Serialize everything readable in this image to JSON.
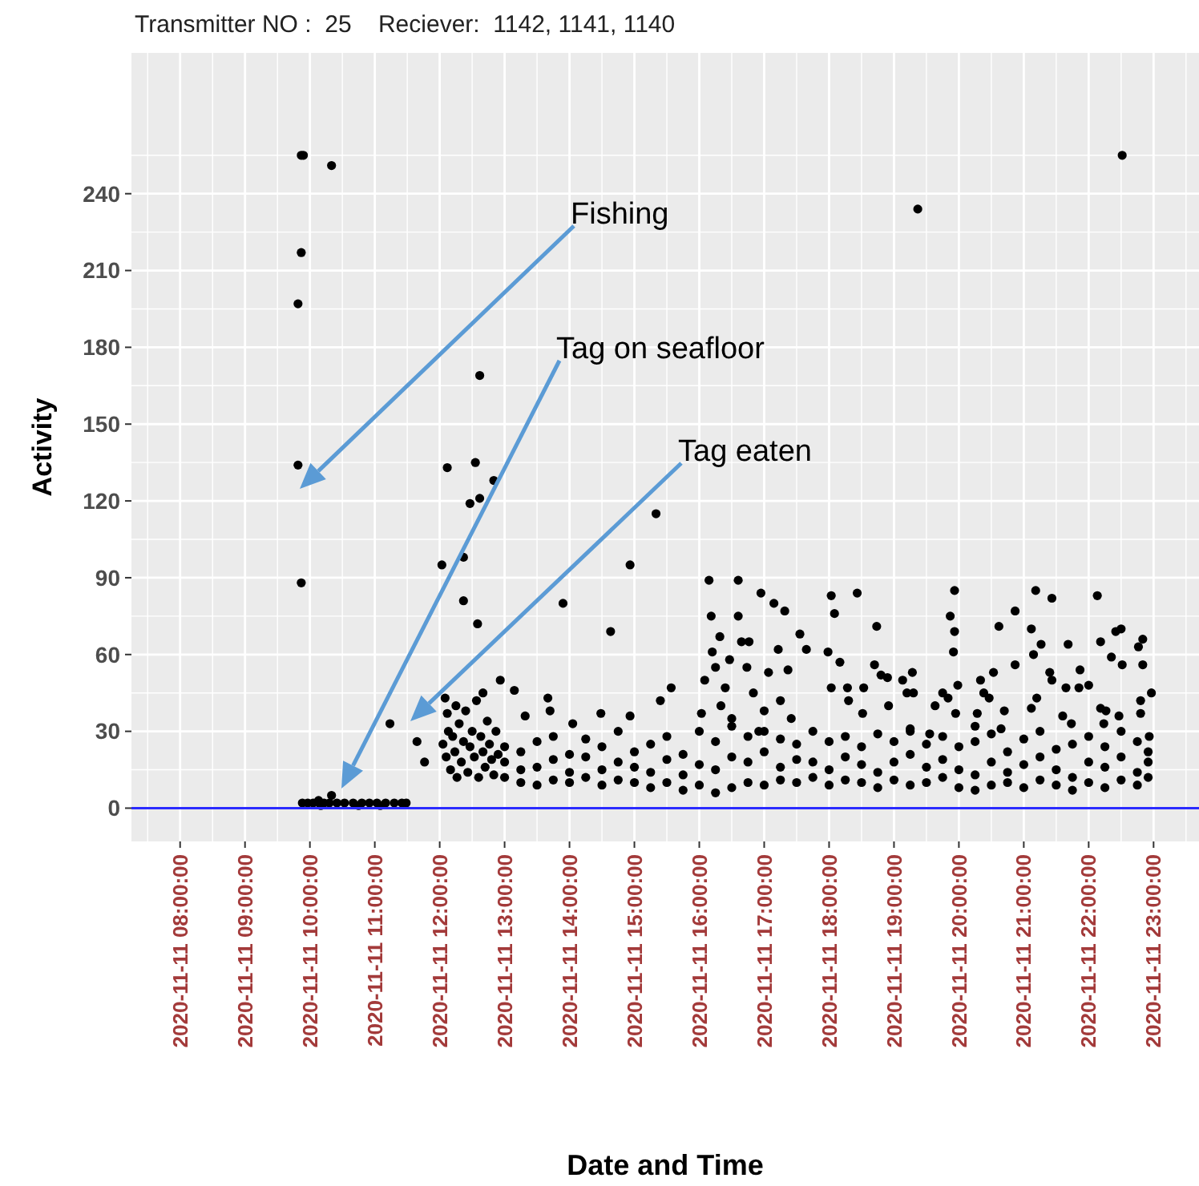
{
  "chart_data": {
    "type": "scatter",
    "title": "Transmitter NO :  25    Reciever:  1142, 1141, 1140",
    "xlabel": "Date and Time",
    "ylabel": "Activity",
    "xlim": [
      "2020-11-11T07:15",
      "2020-11-11T23:42"
    ],
    "ylim": [
      -13,
      295
    ],
    "xticks": [
      {
        "value": "2020-11-11T08:00",
        "label": "2020-11-11 08:00:00"
      },
      {
        "value": "2020-11-11T09:00",
        "label": "2020-11-11 09:00:00"
      },
      {
        "value": "2020-11-11T10:00",
        "label": "2020-11-11 10:00:00"
      },
      {
        "value": "2020-11-11T11:00",
        "label": "2020-11-11 11:00:00"
      },
      {
        "value": "2020-11-11T12:00",
        "label": "2020-11-11 12:00:00"
      },
      {
        "value": "2020-11-11T13:00",
        "label": "2020-11-11 13:00:00"
      },
      {
        "value": "2020-11-11T14:00",
        "label": "2020-11-11 14:00:00"
      },
      {
        "value": "2020-11-11T15:00",
        "label": "2020-11-11 15:00:00"
      },
      {
        "value": "2020-11-11T16:00",
        "label": "2020-11-11 16:00:00"
      },
      {
        "value": "2020-11-11T17:00",
        "label": "2020-11-11 17:00:00"
      },
      {
        "value": "2020-11-11T18:00",
        "label": "2020-11-11 18:00:00"
      },
      {
        "value": "2020-11-11T19:00",
        "label": "2020-11-11 19:00:00"
      },
      {
        "value": "2020-11-11T20:00",
        "label": "2020-11-11 20:00:00"
      },
      {
        "value": "2020-11-11T21:00",
        "label": "2020-11-11 21:00:00"
      },
      {
        "value": "2020-11-11T22:00",
        "label": "2020-11-11 22:00:00"
      },
      {
        "value": "2020-11-11T23:00",
        "label": "2020-11-11 23:00:00"
      }
    ],
    "yticks": [
      0,
      30,
      60,
      90,
      120,
      150,
      180,
      210,
      240
    ],
    "grid": true,
    "marker": "circle",
    "ref_lines": [
      {
        "axis": "y",
        "value": 0,
        "color": "#2b2bff"
      }
    ],
    "annotations": [
      "Fishing",
      "Tag on seafloor",
      "Tag eaten"
    ],
    "series": [
      {
        "color": "#000000",
        "x": [
          "2020-11-11T09:52",
          "2020-11-11T09:54",
          "2020-11-11T10:20",
          "2020-11-11T09:52",
          "2020-11-11T09:49",
          "2020-11-11T09:49",
          "2020-11-11T09:52",
          "2020-11-11T09:53",
          "2020-11-11T09:58",
          "2020-11-11T10:03",
          "2020-11-11T10:08",
          "2020-11-11T10:10",
          "2020-11-11T10:13",
          "2020-11-11T10:18",
          "2020-11-11T10:20",
          "2020-11-11T10:25",
          "2020-11-11T10:32",
          "2020-11-11T10:40",
          "2020-11-11T10:45",
          "2020-11-11T10:48",
          "2020-11-11T10:55",
          "2020-11-11T11:02",
          "2020-11-11T11:05",
          "2020-11-11T11:10",
          "2020-11-11T11:18",
          "2020-11-11T11:25",
          "2020-11-11T11:29",
          "2020-11-11T11:14",
          "2020-11-11T11:39",
          "2020-11-11T11:46",
          "2020-11-11T12:37",
          "2020-11-11T12:07",
          "2020-11-11T12:33",
          "2020-11-11T12:50",
          "2020-11-11T12:28",
          "2020-11-11T12:37",
          "2020-11-11T12:02",
          "2020-11-11T12:22",
          "2020-11-11T12:22",
          "2020-11-11T12:35",
          "2020-11-11T12:05",
          "2020-11-11T12:07",
          "2020-11-11T12:56",
          "2020-11-11T12:03",
          "2020-11-11T12:06",
          "2020-11-11T12:08",
          "2020-11-11T12:10",
          "2020-11-11T12:12",
          "2020-11-11T12:14",
          "2020-11-11T12:15",
          "2020-11-11T12:16",
          "2020-11-11T12:18",
          "2020-11-11T12:20",
          "2020-11-11T12:22",
          "2020-11-11T12:24",
          "2020-11-11T12:26",
          "2020-11-11T12:28",
          "2020-11-11T12:30",
          "2020-11-11T12:32",
          "2020-11-11T12:34",
          "2020-11-11T12:36",
          "2020-11-11T12:38",
          "2020-11-11T12:40",
          "2020-11-11T12:40",
          "2020-11-11T12:42",
          "2020-11-11T12:44",
          "2020-11-11T12:46",
          "2020-11-11T12:48",
          "2020-11-11T12:50",
          "2020-11-11T12:52",
          "2020-11-11T12:54",
          "2020-11-11T14:56",
          "2020-11-11T13:54",
          "2020-11-11T14:38",
          "2020-11-11T16:09",
          "2020-11-11T16:36",
          "2020-11-11T16:57",
          "2020-11-11T17:09",
          "2020-11-11T17:19",
          "2020-11-11T16:11",
          "2020-11-11T16:36",
          "2020-11-11T18:02",
          "2020-11-11T18:26",
          "2020-11-11T18:05",
          "2020-11-11T17:33",
          "2020-11-11T17:39",
          "2020-11-11T17:13",
          "2020-11-11T16:19",
          "2020-11-11T16:12",
          "2020-11-11T16:15",
          "2020-11-11T16:39",
          "2020-11-11T16:46",
          "2020-11-11T16:44",
          "2020-11-11T16:24",
          "2020-11-11T17:04",
          "2020-11-11T17:22",
          "2020-11-11T17:59",
          "2020-11-11T18:10",
          "2020-11-11T18:02",
          "2020-11-11T18:17",
          "2020-11-11T18:18",
          "2020-11-11T13:09",
          "2020-11-11T13:19",
          "2020-11-11T13:40",
          "2020-11-11T13:42",
          "2020-11-11T14:03",
          "2020-11-11T14:29",
          "2020-11-11T14:56",
          "2020-11-11T15:24",
          "2020-11-11T15:34",
          "2020-11-11T16:02",
          "2020-11-11T15:20",
          "2020-11-11T16:20",
          "2020-11-11T16:28",
          "2020-11-11T16:50",
          "2020-11-11T17:00",
          "2020-11-11T16:05",
          "2020-11-11T16:30",
          "2020-11-11T17:15",
          "2020-11-11T17:25",
          "2020-11-11T16:55",
          "2020-11-11T18:44",
          "2020-11-11T19:56",
          "2020-11-11T19:52",
          "2020-11-11T19:56",
          "2020-11-11T19:55",
          "2020-11-11T21:11",
          "2020-11-11T21:26",
          "2020-11-11T22:08",
          "2020-11-11T20:52",
          "2020-11-11T20:37",
          "2020-11-11T21:07",
          "2020-11-11T21:16",
          "2020-11-11T21:41",
          "2020-11-11T22:25",
          "2020-11-11T22:30",
          "2020-11-11T22:11",
          "2020-11-11T22:50",
          "2020-11-11T22:46",
          "2020-11-11T22:21",
          "2020-11-11T22:31",
          "2020-11-11T22:50",
          "2020-11-11T22:58",
          "2020-11-11T22:48",
          "2020-11-11T22:48",
          "2020-11-11T22:56",
          "2020-11-11T21:09",
          "2020-11-11T21:24",
          "2020-11-11T21:26",
          "2020-11-11T21:52",
          "2020-11-11T21:39",
          "2020-11-11T21:51",
          "2020-11-11T22:00",
          "2020-11-11T20:52",
          "2020-11-11T20:20",
          "2020-11-11T20:32",
          "2020-11-11T21:07",
          "2020-11-11T21:12",
          "2020-11-11T20:23",
          "2020-11-11T20:28",
          "2020-11-11T19:17",
          "2020-11-11T19:08",
          "2020-11-11T19:12",
          "2020-11-11T19:18",
          "2020-11-11T18:42",
          "2020-11-11T18:48",
          "2020-11-11T18:54",
          "2020-11-11T18:32",
          "2020-11-11T18:55",
          "2020-11-11T18:31",
          "2020-11-11T19:45",
          "2020-11-11T19:50",
          "2020-11-11T19:38",
          "2020-11-11T19:57",
          "2020-11-11T19:59",
          "2020-11-11T20:17",
          "2020-11-11T20:15",
          "2020-11-11T20:42",
          "2020-11-11T20:39",
          "2020-11-11T21:36",
          "2020-11-11T21:44",
          "2020-11-11T22:11",
          "2020-11-11T22:16",
          "2020-11-11T22:14",
          "2020-11-11T22:28",
          "2020-11-11T19:33",
          "2020-11-11T19:15",
          "2020-11-11T19:22",
          "2020-11-11T22:31",
          "2020-11-11T13:00",
          "2020-11-11T13:00",
          "2020-11-11T13:00",
          "2020-11-11T13:15",
          "2020-11-11T13:15",
          "2020-11-11T13:15",
          "2020-11-11T13:30",
          "2020-11-11T13:30",
          "2020-11-11T13:30",
          "2020-11-11T13:45",
          "2020-11-11T13:45",
          "2020-11-11T13:45",
          "2020-11-11T14:00",
          "2020-11-11T14:00",
          "2020-11-11T14:00",
          "2020-11-11T14:15",
          "2020-11-11T14:15",
          "2020-11-11T14:15",
          "2020-11-11T14:30",
          "2020-11-11T14:30",
          "2020-11-11T14:30",
          "2020-11-11T14:45",
          "2020-11-11T14:45",
          "2020-11-11T14:45",
          "2020-11-11T15:00",
          "2020-11-11T15:00",
          "2020-11-11T15:00",
          "2020-11-11T15:15",
          "2020-11-11T15:15",
          "2020-11-11T15:15",
          "2020-11-11T15:30",
          "2020-11-11T15:30",
          "2020-11-11T15:30",
          "2020-11-11T15:45",
          "2020-11-11T15:45",
          "2020-11-11T15:45",
          "2020-11-11T16:00",
          "2020-11-11T16:00",
          "2020-11-11T16:00",
          "2020-11-11T16:15",
          "2020-11-11T16:15",
          "2020-11-11T16:15",
          "2020-11-11T16:30",
          "2020-11-11T16:30",
          "2020-11-11T16:30",
          "2020-11-11T16:45",
          "2020-11-11T16:45",
          "2020-11-11T16:45",
          "2020-11-11T17:00",
          "2020-11-11T17:00",
          "2020-11-11T17:00",
          "2020-11-11T17:15",
          "2020-11-11T17:15",
          "2020-11-11T17:15",
          "2020-11-11T17:30",
          "2020-11-11T17:30",
          "2020-11-11T17:30",
          "2020-11-11T17:45",
          "2020-11-11T17:45",
          "2020-11-11T17:45",
          "2020-11-11T18:00",
          "2020-11-11T18:00",
          "2020-11-11T18:00",
          "2020-11-11T18:15",
          "2020-11-11T18:15",
          "2020-11-11T18:15",
          "2020-11-11T18:30",
          "2020-11-11T18:30",
          "2020-11-11T18:30",
          "2020-11-11T18:45",
          "2020-11-11T18:45",
          "2020-11-11T18:45",
          "2020-11-11T19:00",
          "2020-11-11T19:00",
          "2020-11-11T19:00",
          "2020-11-11T19:15",
          "2020-11-11T19:15",
          "2020-11-11T19:15",
          "2020-11-11T19:30",
          "2020-11-11T19:30",
          "2020-11-11T19:30",
          "2020-11-11T19:45",
          "2020-11-11T19:45",
          "2020-11-11T19:45",
          "2020-11-11T20:00",
          "2020-11-11T20:00",
          "2020-11-11T20:00",
          "2020-11-11T20:15",
          "2020-11-11T20:15",
          "2020-11-11T20:15",
          "2020-11-11T20:30",
          "2020-11-11T20:30",
          "2020-11-11T20:30",
          "2020-11-11T20:45",
          "2020-11-11T20:45",
          "2020-11-11T20:45",
          "2020-11-11T21:00",
          "2020-11-11T21:00",
          "2020-11-11T21:00",
          "2020-11-11T21:15",
          "2020-11-11T21:15",
          "2020-11-11T21:15",
          "2020-11-11T21:30",
          "2020-11-11T21:30",
          "2020-11-11T21:30",
          "2020-11-11T21:45",
          "2020-11-11T21:45",
          "2020-11-11T21:45",
          "2020-11-11T22:00",
          "2020-11-11T22:00",
          "2020-11-11T22:00",
          "2020-11-11T22:15",
          "2020-11-11T22:15",
          "2020-11-11T22:15",
          "2020-11-11T22:30",
          "2020-11-11T22:30",
          "2020-11-11T22:30",
          "2020-11-11T22:45",
          "2020-11-11T22:45",
          "2020-11-11T22:45",
          "2020-11-11T22:55",
          "2020-11-11T22:55",
          "2020-11-11T22:55"
        ],
        "values": [
          255,
          255,
          251,
          217,
          197,
          134,
          88,
          2,
          2,
          2,
          3,
          1,
          2,
          2,
          5,
          2,
          2,
          2,
          1,
          2,
          2,
          2,
          1,
          2,
          2,
          2,
          2,
          33,
          26,
          18,
          169,
          133,
          135,
          128,
          119,
          121,
          95,
          98,
          81,
          72,
          43,
          37,
          50,
          25,
          20,
          30,
          15,
          28,
          22,
          40,
          12,
          33,
          18,
          26,
          38,
          14,
          24,
          30,
          20,
          42,
          12,
          28,
          22,
          45,
          16,
          34,
          25,
          19,
          13,
          30,
          21,
          95,
          80,
          69,
          89,
          89,
          84,
          80,
          77,
          75,
          75,
          83,
          84,
          76,
          68,
          62,
          62,
          67,
          61,
          55,
          65,
          65,
          55,
          47,
          53,
          54,
          61,
          57,
          47,
          47,
          42,
          46,
          36,
          43,
          38,
          33,
          37,
          36,
          42,
          47,
          37,
          115,
          40,
          58,
          45,
          38,
          50,
          35,
          42,
          35,
          30,
          71,
          85,
          75,
          69,
          61,
          85,
          82,
          83,
          77,
          71,
          70,
          64,
          64,
          69,
          70,
          65,
          66,
          63,
          59,
          56,
          56,
          45,
          42,
          37,
          28,
          60,
          53,
          50,
          54,
          47,
          47,
          48,
          56,
          50,
          53,
          39,
          43,
          45,
          43,
          53,
          50,
          45,
          45,
          56,
          52,
          51,
          47,
          40,
          37,
          45,
          43,
          40,
          37,
          48,
          37,
          32,
          38,
          31,
          36,
          33,
          39,
          38,
          33,
          36,
          29,
          31,
          234,
          255,
          12,
          18,
          24,
          10,
          15,
          22,
          9,
          16,
          26,
          11,
          19,
          28,
          10,
          14,
          21,
          12,
          20,
          27,
          9,
          15,
          24,
          11,
          18,
          30,
          10,
          16,
          22,
          8,
          14,
          25,
          10,
          19,
          28,
          7,
          13,
          21,
          9,
          17,
          30,
          6,
          15,
          26,
          8,
          20,
          32,
          10,
          18,
          28,
          9,
          22,
          30,
          11,
          16,
          27,
          10,
          19,
          25,
          12,
          18,
          30,
          9,
          15,
          26,
          11,
          20,
          28,
          10,
          17,
          24,
          8,
          14,
          29,
          11,
          18,
          26,
          9,
          21,
          30,
          10,
          16,
          25,
          12,
          19,
          28,
          8,
          15,
          24,
          7,
          13,
          26,
          9,
          18,
          29,
          10,
          14,
          22,
          8,
          17,
          27,
          11,
          20,
          30,
          9,
          15,
          23,
          7,
          12,
          25,
          10,
          18,
          28,
          8,
          16,
          24,
          11,
          20,
          30,
          9,
          14,
          26,
          12,
          18,
          22
        ]
      }
    ]
  }
}
